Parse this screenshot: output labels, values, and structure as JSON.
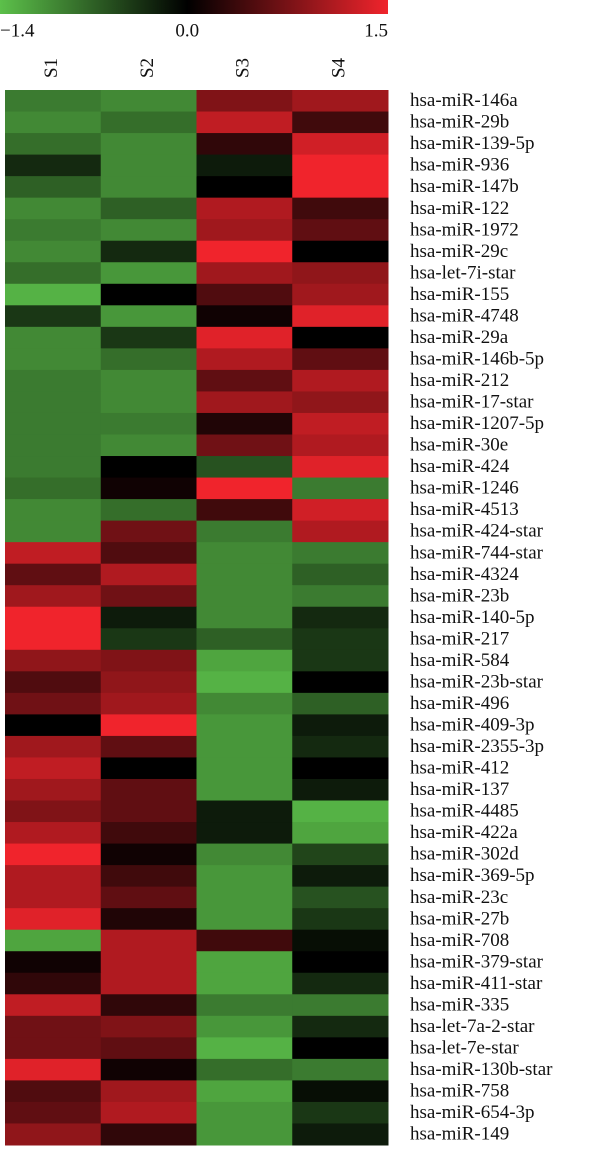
{
  "chart_data": {
    "type": "heatmap",
    "x": [
      "S1",
      "S2",
      "S3",
      "S4"
    ],
    "y": [
      "hsa-miR-146a",
      "hsa-miR-29b",
      "hsa-miR-139-5p",
      "hsa-miR-936",
      "hsa-miR-147b",
      "hsa-miR-122",
      "hsa-miR-1972",
      "hsa-miR-29c",
      "hsa-let-7i-star",
      "hsa-miR-155",
      "hsa-miR-4748",
      "hsa-miR-29a",
      "hsa-miR-146b-5p",
      "hsa-miR-212",
      "hsa-miR-17-star",
      "hsa-miR-1207-5p",
      "hsa-miR-30e",
      "hsa-miR-424",
      "hsa-miR-1246",
      "hsa-miR-4513",
      "hsa-miR-424-star",
      "hsa-miR-744-star",
      "hsa-miR-4324",
      "hsa-miR-23b",
      "hsa-miR-140-5p",
      "hsa-miR-217",
      "hsa-miR-584",
      "hsa-miR-23b-star",
      "hsa-miR-496",
      "hsa-miR-409-3p",
      "hsa-miR-2355-3p",
      "hsa-miR-412",
      "hsa-miR-137",
      "hsa-miR-4485",
      "hsa-miR-422a",
      "hsa-miR-302d",
      "hsa-miR-369-5p",
      "hsa-miR-23c",
      "hsa-miR-27b",
      "hsa-miR-708",
      "hsa-miR-379-star",
      "hsa-miR-411-star",
      "hsa-miR-335",
      "hsa-let-7a-2-star",
      "hsa-let-7e-star",
      "hsa-miR-130b-star",
      "hsa-miR-758",
      "hsa-miR-654-3p",
      "hsa-miR-149"
    ],
    "values": [
      [
        -0.9,
        -1.0,
        0.8,
        1.0
      ],
      [
        -1.0,
        -0.8,
        1.2,
        0.4
      ],
      [
        -0.8,
        -1.0,
        0.3,
        1.3
      ],
      [
        -0.3,
        -1.0,
        -0.2,
        1.5
      ],
      [
        -0.7,
        -1.0,
        0.0,
        1.5
      ],
      [
        -1.0,
        -0.7,
        1.1,
        0.4
      ],
      [
        -0.9,
        -1.0,
        1.0,
        0.6
      ],
      [
        -1.0,
        -0.3,
        1.5,
        0.0
      ],
      [
        -0.8,
        -1.1,
        1.0,
        0.9
      ],
      [
        -1.3,
        0.0,
        0.5,
        1.0
      ],
      [
        -0.4,
        -1.1,
        0.1,
        1.4
      ],
      [
        -1.0,
        -0.4,
        1.4,
        0.0
      ],
      [
        -1.0,
        -0.8,
        1.1,
        0.6
      ],
      [
        -0.9,
        -1.0,
        0.6,
        1.1
      ],
      [
        -0.9,
        -1.0,
        1.0,
        0.9
      ],
      [
        -0.9,
        -0.9,
        0.2,
        1.2
      ],
      [
        -0.9,
        -1.0,
        0.7,
        1.1
      ],
      [
        -0.9,
        0.0,
        -0.6,
        1.4
      ],
      [
        -0.8,
        0.1,
        1.5,
        -0.9
      ],
      [
        -1.0,
        -0.8,
        0.4,
        1.3
      ],
      [
        -1.0,
        0.7,
        -0.9,
        1.1
      ],
      [
        1.2,
        0.5,
        -1.0,
        -0.9
      ],
      [
        0.6,
        1.1,
        -1.0,
        -0.7
      ],
      [
        1.0,
        0.7,
        -1.0,
        -0.9
      ],
      [
        1.5,
        -0.2,
        -1.0,
        -0.3
      ],
      [
        1.5,
        -0.4,
        -0.7,
        -0.4
      ],
      [
        0.9,
        0.8,
        -1.2,
        -0.4
      ],
      [
        0.5,
        0.9,
        -1.3,
        0.0
      ],
      [
        0.7,
        1.0,
        -1.0,
        -0.7
      ],
      [
        0.0,
        1.5,
        -1.1,
        -0.2
      ],
      [
        1.0,
        0.6,
        -1.1,
        -0.3
      ],
      [
        1.2,
        0.0,
        -1.1,
        0.0
      ],
      [
        1.0,
        0.6,
        -1.1,
        -0.2
      ],
      [
        0.8,
        0.6,
        -0.2,
        -1.3
      ],
      [
        1.1,
        0.4,
        -0.2,
        -1.2
      ],
      [
        1.5,
        0.1,
        -1.0,
        -0.5
      ],
      [
        1.1,
        0.4,
        -1.1,
        -0.2
      ],
      [
        1.1,
        0.6,
        -1.1,
        -0.6
      ],
      [
        1.4,
        0.2,
        -1.1,
        -0.4
      ],
      [
        -1.2,
        1.1,
        0.4,
        -0.1
      ],
      [
        0.1,
        1.1,
        -1.2,
        0.0
      ],
      [
        0.3,
        1.1,
        -1.2,
        -0.3
      ],
      [
        1.2,
        0.3,
        -0.9,
        -0.9
      ],
      [
        0.7,
        0.8,
        -1.1,
        -0.3
      ],
      [
        0.7,
        0.6,
        -1.3,
        0.0
      ],
      [
        1.4,
        0.1,
        -0.8,
        -0.9
      ],
      [
        0.5,
        1.0,
        -1.2,
        -0.1
      ],
      [
        0.6,
        1.1,
        -1.1,
        -0.4
      ],
      [
        0.9,
        0.3,
        -1.1,
        -0.2
      ]
    ],
    "zlim": [
      -1.4,
      1.5
    ],
    "zticks": [
      {
        "value": -1.4,
        "label": "−1.4"
      },
      {
        "value": 0,
        "label": "0.0"
      },
      1.5
    ],
    "colors": [
      "#5cc04a",
      "#000000",
      "#f0242c"
    ]
  }
}
